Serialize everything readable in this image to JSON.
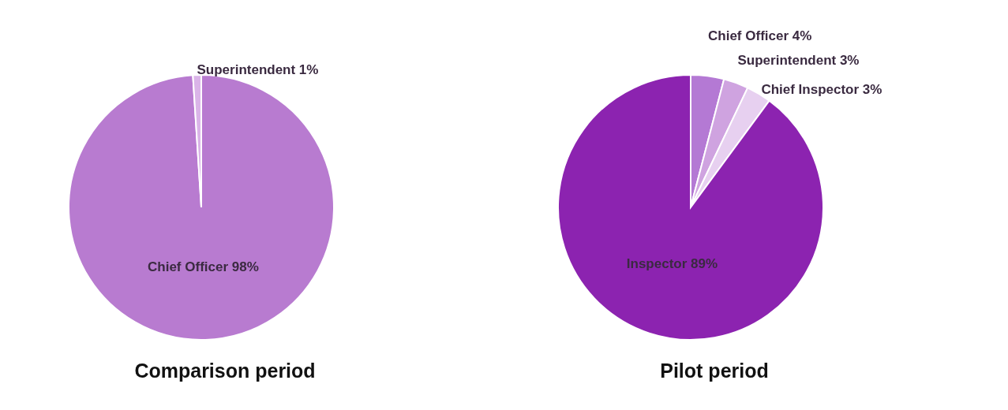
{
  "chart_data": [
    {
      "type": "pie",
      "title": "Comparison period",
      "categories": [
        "Chief Officer",
        "Superintendent"
      ],
      "values": [
        98,
        1
      ],
      "colors": [
        "#b87bd0",
        "#dab4e8"
      ],
      "value_labels": [
        "98%",
        "1%"
      ]
    },
    {
      "type": "pie",
      "title": "Pilot period",
      "categories": [
        "Chief Officer",
        "Superintendent",
        "Chief Inspector",
        "Inspector"
      ],
      "values": [
        4,
        3,
        3,
        89
      ],
      "colors": [
        "#b479d4",
        "#cfa3e0",
        "#e7d0f0",
        "#8c23b0"
      ],
      "value_labels": [
        "4%",
        "3%",
        "3%",
        "89%"
      ]
    }
  ]
}
